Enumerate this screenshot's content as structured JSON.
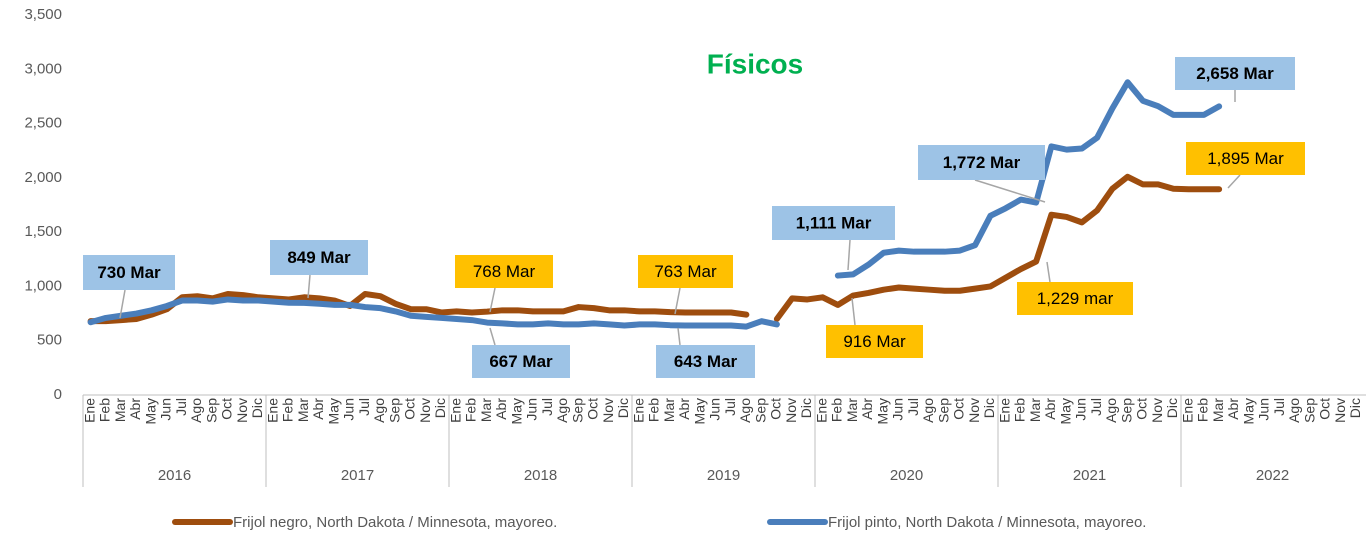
{
  "chart_data": {
    "type": "line",
    "title": "Físicos",
    "categories": [
      "Ene",
      "Feb",
      "Mar",
      "Abr",
      "May",
      "Jun",
      "Jul",
      "Ago",
      "Sep",
      "Oct",
      "Nov",
      "Dic",
      "Ene",
      "Feb",
      "Mar",
      "Abr",
      "May",
      "Jun",
      "Jul",
      "Ago",
      "Sep",
      "Oct",
      "Nov",
      "Dic",
      "Ene",
      "Feb",
      "Mar",
      "Abr",
      "May",
      "Jun",
      "Jul",
      "Ago",
      "Sep",
      "Oct",
      "Nov",
      "Dic",
      "Ene",
      "Feb",
      "Mar",
      "Abr",
      "May",
      "Jun",
      "Jul",
      "Ago",
      "Sep",
      "Oct",
      "Nov",
      "Dic",
      "Ene",
      "Feb",
      "Mar",
      "Abr",
      "May",
      "Jun",
      "Jul",
      "Ago",
      "Sep",
      "Oct",
      "Nov",
      "Dic",
      "Ene",
      "Feb",
      "Mar",
      "Abr",
      "May",
      "Jun",
      "Jul",
      "Ago",
      "Sep",
      "Oct",
      "Nov",
      "Dic",
      "Ene",
      "Feb",
      "Mar",
      "Abr",
      "May",
      "Jun",
      "Jul",
      "Ago",
      "Sep",
      "Oct",
      "Nov",
      "Dic"
    ],
    "years": [
      "2016",
      "2017",
      "2018",
      "2019",
      "2020",
      "2021",
      "2022"
    ],
    "series": [
      {
        "name": "Frijol negro, North Dakota / Minnesota, mayoreo.",
        "color": "#9e4d0e",
        "values": [
          680,
          680,
          690,
          700,
          740,
          790,
          900,
          910,
          890,
          930,
          920,
          900,
          890,
          880,
          900,
          890,
          870,
          820,
          930,
          910,
          840,
          790,
          790,
          760,
          770,
          760,
          768,
          780,
          780,
          770,
          770,
          770,
          810,
          800,
          780,
          780,
          770,
          770,
          763,
          760,
          760,
          760,
          760,
          740,
          null,
          700,
          890,
          880,
          900,
          830,
          916,
          940,
          970,
          990,
          980,
          970,
          960,
          960,
          980,
          1000,
          1080,
          1160,
          1229,
          1660,
          1640,
          1590,
          1700,
          1900,
          2010,
          1940,
          1940,
          1900,
          1895,
          1895,
          1895,
          null,
          null,
          null,
          null,
          null,
          null,
          null,
          null,
          null
        ]
      },
      {
        "name": "Frijol pinto, North Dakota / Minnesota, mayoreo.",
        "color": "#4a7ebb",
        "values": [
          670,
          710,
          730,
          750,
          780,
          820,
          870,
          870,
          860,
          880,
          870,
          870,
          860,
          850,
          849,
          840,
          830,
          830,
          810,
          800,
          770,
          730,
          720,
          710,
          700,
          690,
          667,
          660,
          650,
          650,
          660,
          650,
          650,
          660,
          650,
          640,
          650,
          650,
          643,
          640,
          640,
          640,
          640,
          630,
          680,
          650,
          null,
          null,
          null,
          1100,
          1111,
          1200,
          1310,
          1330,
          1320,
          1320,
          1320,
          1330,
          1380,
          1650,
          1720,
          1800,
          1772,
          2290,
          2260,
          2270,
          2370,
          2640,
          2880,
          2710,
          2660,
          2580,
          2580,
          2580,
          2658,
          null,
          null,
          null,
          null,
          null,
          null,
          null,
          null,
          null
        ]
      }
    ],
    "annotations": [
      "730 Mar",
      "849 Mar",
      "768 Mar",
      "667 Mar",
      "763 Mar",
      "643 Mar",
      "1,111 Mar",
      "916 Mar",
      "1,772 Mar",
      "1,229 mar",
      "2,658 Mar",
      "1,895 Mar"
    ],
    "ylim": [
      0,
      3500
    ],
    "yticks": [
      0,
      500,
      {
        "value": 1000,
        "label": "1,000"
      },
      {
        "value": 1500,
        "label": "1,500"
      },
      {
        "value": 2000,
        "label": "2,000"
      },
      {
        "value": 2500,
        "label": "2,500"
      },
      {
        "value": 3000,
        "label": "3,000"
      },
      {
        "value": 3500,
        "label": "3,500"
      }
    ],
    "grid": false
  }
}
